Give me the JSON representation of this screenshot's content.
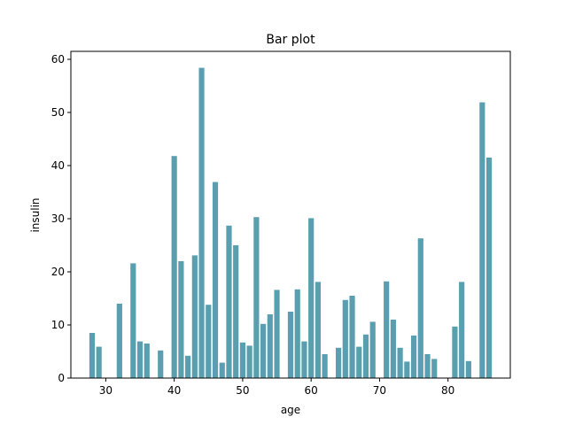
{
  "chart_data": {
    "type": "bar",
    "title": "Bar plot",
    "xlabel": "age",
    "ylabel": "insulin",
    "xlim": [
      24.9,
      89.1
    ],
    "ylim": [
      0,
      61.5
    ],
    "x_ticks": [
      30,
      40,
      50,
      60,
      70,
      80
    ],
    "y_ticks": [
      0,
      10,
      20,
      30,
      40,
      50,
      60
    ],
    "grid": false,
    "bar_color": "#5a9fb0",
    "x": [
      28,
      29,
      32,
      34,
      35,
      36,
      38,
      40,
      41,
      42,
      43,
      44,
      45,
      46,
      47,
      48,
      49,
      50,
      51,
      52,
      53,
      54,
      55,
      57,
      58,
      59,
      60,
      61,
      62,
      64,
      65,
      66,
      67,
      68,
      69,
      71,
      72,
      73,
      74,
      75,
      76,
      77,
      78,
      81,
      82,
      83,
      85,
      86
    ],
    "values": [
      8.5,
      5.9,
      14.0,
      21.6,
      6.9,
      6.5,
      5.2,
      41.8,
      22.0,
      4.2,
      23.1,
      58.4,
      13.8,
      36.9,
      2.9,
      28.7,
      25.0,
      6.7,
      6.1,
      30.3,
      10.2,
      12.0,
      16.6,
      12.5,
      16.7,
      6.9,
      30.1,
      18.1,
      4.5,
      5.7,
      14.7,
      15.5,
      5.9,
      8.2,
      10.6,
      18.2,
      11.0,
      5.7,
      3.1,
      8.0,
      26.3,
      4.5,
      3.6,
      9.7,
      18.1,
      3.2,
      51.9,
      41.5
    ]
  }
}
